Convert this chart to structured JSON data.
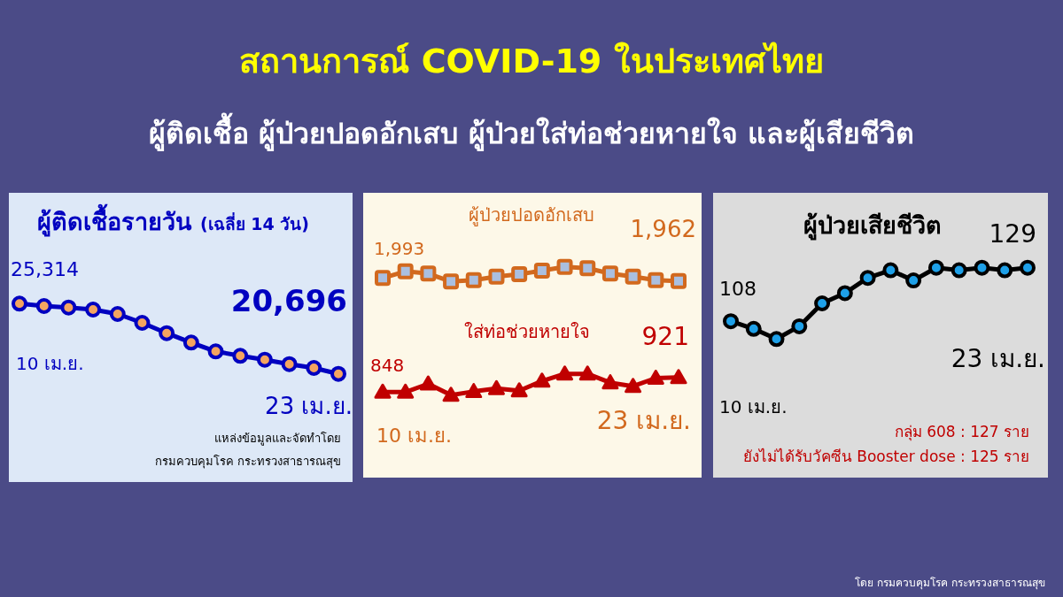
{
  "chart_data": [
    {
      "type": "other",
      "title": "สถานการณ์ COVID-19 ในประเทศไทย",
      "subtitle": "ผู้ติดเชื้อ ผู้ป่วยปอดอักเสบ ผู้ป่วยใส่ท่อช่วยหายใจ และผู้เสียชีวิต",
      "annotations": [
        "โดย กรมควบคุมโรค กระทรวงสาธารณสุข"
      ]
    },
    {
      "type": "line",
      "title": "ผู้ติดเชื้อรายวัน",
      "subtitle": "(เฉลี่ย 14 วัน)",
      "categories": [
        null,
        null,
        null,
        null,
        null,
        null,
        null,
        null,
        null,
        null,
        null,
        null,
        null,
        null
      ],
      "series": [
        {
          "color": "#0000c0",
          "marker": "circle",
          "values": [
            25314,
            25157,
            25058,
            24924,
            24634,
            24052,
            23371,
            22755,
            22173,
            21883,
            21627,
            21336,
            21086,
            20696
          ],
          "value_labels": [
            "25,314",
            null,
            null,
            null,
            null,
            null,
            null,
            null,
            null,
            null,
            null,
            null,
            null,
            "20,696"
          ]
        }
      ],
      "annotations": [
        "10 เม.ย.",
        "23 เม.ย.",
        "แหล่งข้อมูลและจัดทำโดย",
        "กรมควบคุมโรค กระทรวงสาธารณสุข"
      ]
    },
    {
      "type": "line",
      "categories": [
        null,
        null,
        null,
        null,
        null,
        null,
        null,
        null,
        null,
        null,
        null,
        null,
        null,
        null
      ],
      "series": [
        {
          "name": "ผู้ป่วยปอดอักเสบ",
          "color": "#d2691e",
          "marker": "square",
          "values": [
            1993,
            2062,
            2039,
            1957,
            1971,
            2008,
            2032,
            2069,
            2108,
            2093,
            2039,
            2008,
            1971,
            1962
          ],
          "value_labels": [
            "1,993",
            null,
            null,
            null,
            null,
            null,
            null,
            null,
            null,
            null,
            null,
            null,
            null,
            "1,962"
          ]
        }
      ]
    },
    {
      "type": "line",
      "categories": [
        null,
        null,
        null,
        null,
        null,
        null,
        null,
        null,
        null,
        null,
        null,
        null,
        null,
        null
      ],
      "series": [
        {
          "name": "ใส่ท่อช่วยหายใจ",
          "color": "#c00000",
          "marker": "triangle",
          "values": [
            848,
            848,
            889,
            833,
            851,
            866,
            855,
            903,
            939,
            939,
            895,
            877,
            918,
            921
          ],
          "value_labels": [
            "848",
            null,
            null,
            null,
            null,
            null,
            null,
            null,
            null,
            null,
            null,
            null,
            null,
            "921"
          ]
        }
      ],
      "annotations": [
        "10 เม.ย.",
        "23 เม.ย."
      ]
    },
    {
      "type": "line",
      "title": "ผู้ป่วยเสียชีวิต",
      "categories": [
        null,
        null,
        null,
        null,
        null,
        null,
        null,
        null,
        null,
        null,
        null,
        null,
        null,
        null
      ],
      "series": [
        {
          "color": "#000000",
          "marker": "circle",
          "values": [
            108,
            105,
            101,
            106,
            115,
            119,
            125,
            128,
            124,
            129,
            128,
            129,
            128,
            129
          ],
          "value_labels": [
            "108",
            null,
            null,
            null,
            null,
            null,
            null,
            null,
            null,
            null,
            null,
            null,
            null,
            "129"
          ]
        }
      ],
      "annotations": [
        "10 เม.ย.",
        "23 เม.ย.",
        "กลุ่ม 608 : 127 ราย",
        "ยังไม่ได้รับวัคซีน Booster dose : 125 ราย"
      ]
    }
  ]
}
